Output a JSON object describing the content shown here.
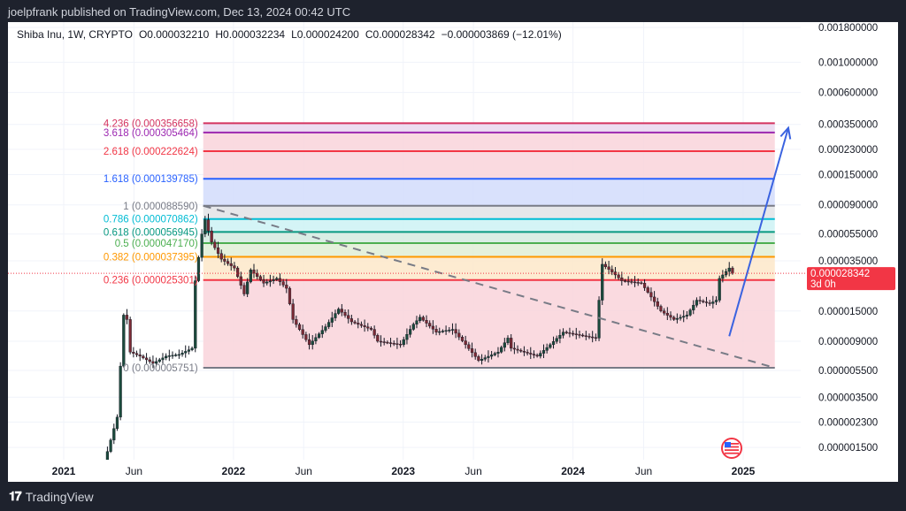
{
  "header": {
    "published": "joelpfrank published on TradingView.com, Dec 13, 2024 00:42 UTC"
  },
  "legend": {
    "symbol": "Shiba Inu, 1W, CRYPTO",
    "open": "O0.000032210",
    "high": "H0.000032234",
    "low": "L0.000024200",
    "close": "C0.000028342",
    "change": "−0.000003869 (−12.01%)"
  },
  "footer": {
    "brand": "TradingView",
    "logo_text": "17"
  },
  "chart_data": {
    "type": "candlestick",
    "title": "",
    "y_scale": "log",
    "ylim": [
      1.3e-06,
      0.0021
    ],
    "xlim": [
      "2020-09-25",
      "2025-04-10"
    ],
    "grid": true,
    "colors": {
      "up": "#089981",
      "down": "#f23645",
      "wick": "#131722",
      "candle_body_up": "#1b4a3c",
      "candle_body_down": "#7a2a35"
    },
    "price_ticks": [
      {
        "value": 0.0018,
        "label": "0.001800000"
      },
      {
        "value": 0.001,
        "label": "0.001000000"
      },
      {
        "value": 0.0006,
        "label": "0.000600000"
      },
      {
        "value": 0.00035,
        "label": "0.000350000"
      },
      {
        "value": 0.00023,
        "label": "0.000230000"
      },
      {
        "value": 0.00015,
        "label": "0.000150000"
      },
      {
        "value": 9e-05,
        "label": "0.000090000"
      },
      {
        "value": 5.5e-05,
        "label": "0.000055000"
      },
      {
        "value": 3.5e-05,
        "label": "0.000035000"
      },
      {
        "value": 1.5e-05,
        "label": "0.000015000"
      },
      {
        "value": 9e-06,
        "label": "0.000009000"
      },
      {
        "value": 5.5e-06,
        "label": "0.000005500"
      },
      {
        "value": 3.5e-06,
        "label": "0.000003500"
      },
      {
        "value": 2.3e-06,
        "label": "0.000002300"
      },
      {
        "value": 1.5e-06,
        "label": "0.000001500"
      }
    ],
    "time_ticks": [
      {
        "date": "2021-01-01",
        "label": "2021",
        "bold": true
      },
      {
        "date": "2021-06-01",
        "label": "Jun",
        "bold": false
      },
      {
        "date": "2022-01-01",
        "label": "2022",
        "bold": true
      },
      {
        "date": "2022-06-01",
        "label": "Jun",
        "bold": false
      },
      {
        "date": "2023-01-01",
        "label": "2023",
        "bold": true
      },
      {
        "date": "2023-06-01",
        "label": "Jun",
        "bold": false
      },
      {
        "date": "2024-01-01",
        "label": "2024",
        "bold": true
      },
      {
        "date": "2024-06-01",
        "label": "Jun",
        "bold": false
      },
      {
        "date": "2025-01-01",
        "label": "2025",
        "bold": true
      }
    ],
    "closes": [
      [
        "2021-04-05",
        1.4e-06
      ],
      [
        "2021-04-26",
        2.5e-06
      ],
      [
        "2021-05-10",
        1.4e-05
      ],
      [
        "2021-05-17",
        1.3e-05
      ],
      [
        "2021-05-24",
        7.5e-06
      ],
      [
        "2021-06-14",
        7e-06
      ],
      [
        "2021-07-12",
        6.2e-06
      ],
      [
        "2021-08-09",
        7e-06
      ],
      [
        "2021-09-06",
        7.2e-06
      ],
      [
        "2021-10-04",
        8e-06
      ],
      [
        "2021-10-11",
        2.5e-05
      ],
      [
        "2021-10-25",
        5.5e-05
      ],
      [
        "2021-11-01",
        7e-05
      ],
      [
        "2021-11-15",
        4.8e-05
      ],
      [
        "2021-12-06",
        3.6e-05
      ],
      [
        "2022-01-03",
        3.1e-05
      ],
      [
        "2022-01-24",
        2e-05
      ],
      [
        "2022-02-07",
        3e-05
      ],
      [
        "2022-03-07",
        2.4e-05
      ],
      [
        "2022-04-04",
        2.6e-05
      ],
      [
        "2022-04-25",
        2.2e-05
      ],
      [
        "2022-05-09",
        1.3e-05
      ],
      [
        "2022-06-13",
        8.5e-06
      ],
      [
        "2022-07-18",
        1.15e-05
      ],
      [
        "2022-08-15",
        1.55e-05
      ],
      [
        "2022-09-12",
        1.25e-05
      ],
      [
        "2022-10-24",
        1.1e-05
      ],
      [
        "2022-11-07",
        9e-06
      ],
      [
        "2022-12-26",
        8.5e-06
      ],
      [
        "2023-01-23",
        1.2e-05
      ],
      [
        "2023-02-06",
        1.35e-05
      ],
      [
        "2023-03-13",
        1.05e-05
      ],
      [
        "2023-04-17",
        1.1e-05
      ],
      [
        "2023-05-15",
        8.5e-06
      ],
      [
        "2023-06-12",
        6.5e-06
      ],
      [
        "2023-07-24",
        7.5e-06
      ],
      [
        "2023-08-14",
        9.5e-06
      ],
      [
        "2023-08-21",
        8e-06
      ],
      [
        "2023-10-16",
        7e-06
      ],
      [
        "2023-11-13",
        8.5e-06
      ],
      [
        "2023-12-11",
        1.05e-05
      ],
      [
        "2024-02-19",
        9.5e-06
      ],
      [
        "2024-02-26",
        1.8e-05
      ],
      [
        "2024-03-04",
        3.3e-05
      ],
      [
        "2024-03-25",
        2.9e-05
      ],
      [
        "2024-04-15",
        2.5e-05
      ],
      [
        "2024-05-27",
        2.4e-05
      ],
      [
        "2024-06-17",
        1.9e-05
      ],
      [
        "2024-07-08",
        1.5e-05
      ],
      [
        "2024-08-05",
        1.3e-05
      ],
      [
        "2024-09-02",
        1.4e-05
      ],
      [
        "2024-09-23",
        1.8e-05
      ],
      [
        "2024-10-21",
        1.7e-05
      ],
      [
        "2024-11-04",
        1.8e-05
      ],
      [
        "2024-11-11",
        2.6e-05
      ],
      [
        "2024-12-02",
        3.1e-05
      ],
      [
        "2024-12-09",
        2.8342e-05
      ]
    ],
    "fib_levels": [
      {
        "ratio": "4.236",
        "price": 0.000356658,
        "label": "4.236 (0.000356658)",
        "color": "#d4335f",
        "fill": "#e9d7ee"
      },
      {
        "ratio": "3.618",
        "price": 0.000305464,
        "label": "3.618 (0.000305464)",
        "color": "#9c27b0",
        "fill": "#f9d4da"
      },
      {
        "ratio": "2.618",
        "price": 0.000222624,
        "label": "2.618 (0.000222624)",
        "color": "#f23645",
        "fill": "#f9d4da"
      },
      {
        "ratio": "1.618",
        "price": 0.000139785,
        "label": "1.618 (0.000139785)",
        "color": "#2962ff",
        "fill": "#d2dcfb"
      },
      {
        "ratio": "1",
        "price": 8.859e-05,
        "label": "1 (0.000088590)",
        "color": "#787b86",
        "fill": "#e2e3e6"
      },
      {
        "ratio": "0.786",
        "price": 7.0862e-05,
        "label": "0.786 (0.000070862)",
        "color": "#00bcd4",
        "fill": "#ccf2f4"
      },
      {
        "ratio": "0.618",
        "price": 5.6945e-05,
        "label": "0.618 (0.000056945)",
        "color": "#089981",
        "fill": "#d3ebe1"
      },
      {
        "ratio": "0.5",
        "price": 4.717e-05,
        "label": "0.5 (0.000047170)",
        "color": "#4caf50",
        "fill": "#e0efd6"
      },
      {
        "ratio": "0.382",
        "price": 3.7395e-05,
        "label": "0.382 (0.000037395)",
        "color": "#ff9800",
        "fill": "#fde8c9"
      },
      {
        "ratio": "0.236",
        "price": 2.5301e-05,
        "label": "0.236 (0.000025301)",
        "color": "#f23645",
        "fill": "#f9d4da"
      },
      {
        "ratio": "0",
        "price": 5.751e-06,
        "label": "0 (0.000005751)",
        "color": "#787b86",
        "fill": null
      }
    ],
    "fib_range": {
      "start": "2021-10-28",
      "end": "2025-03-10"
    },
    "trendline": {
      "from": [
        "2021-10-28",
        8.859e-05
      ],
      "to": [
        "2025-03-10",
        5.751e-06
      ],
      "style": "dashed",
      "color": "#787b86"
    },
    "arrow": {
      "from": [
        "2024-12-02",
        9.8e-06
      ],
      "to": [
        "2025-04-08",
        0.00033
      ],
      "color": "#3b63e0"
    },
    "last_price": {
      "value": 2.8342e-05,
      "label": "0.000028342",
      "countdown": "3d 0h",
      "color": "#f23645"
    },
    "event_icon": "us-flag-economic-event-icon"
  }
}
